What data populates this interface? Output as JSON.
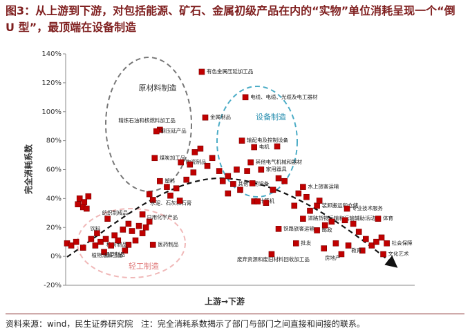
{
  "chart_data": {
    "type": "scatter",
    "title": "图3：从上游到下游，对包括能源、矿石、金属初级产品在内的“实物”单位消耗呈现一个“倒 U 型”，最顶端在设备制造",
    "y_label": "完全消耗系数",
    "x_label": "上游→下游",
    "annotations": [
      "原材料制造",
      "设备制造",
      "轻工制造"
    ],
    "source": "资料来源：wind，民生证券研究院   注：完全消耗系数揭示了部门与部门之间直接和间接的联系。",
    "color": "#c00000",
    "xlim": [
      0,
      100
    ],
    "ylim": [
      -20,
      140
    ],
    "yticks": [
      {
        "value": -20,
        "label": "-20%"
      },
      {
        "value": 0,
        "label": "0%"
      },
      {
        "value": 20,
        "label": "20%"
      },
      {
        "value": 40,
        "label": "40%"
      },
      {
        "value": 60,
        "label": "60%"
      },
      {
        "value": 80,
        "label": "80%"
      },
      {
        "value": 100,
        "label": "100%"
      },
      {
        "value": 120,
        "label": "120%"
      },
      {
        "value": 140,
        "label": "140%"
      }
    ],
    "x": [
      39,
      51.5,
      27,
      26,
      40,
      50.5,
      54,
      25.5,
      33,
      53,
      56,
      27,
      48,
      25,
      54,
      68,
      72,
      80.6,
      68,
      24,
      12,
      9,
      61,
      72,
      89.5,
      66,
      18,
      25,
      17,
      92,
      11,
      59,
      85,
      79,
      91,
      4,
      6.5,
      5,
      6,
      3.5,
      5.3,
      0.4,
      1.6,
      3,
      5,
      7.3,
      8.5,
      10,
      14,
      15,
      16.4,
      19,
      21,
      22,
      23,
      20,
      13,
      11.5,
      18,
      22,
      24,
      29,
      30,
      31.7,
      32.7,
      34.6,
      36.6,
      37,
      38.6,
      35.6,
      40.6,
      42,
      44,
      45,
      46.5,
      49,
      52,
      50,
      46.5,
      53.5,
      55,
      57.4,
      59.4,
      61,
      62.7,
      60.6,
      65.5,
      66.7,
      69,
      70,
      72.7,
      74.3,
      76.2,
      80,
      82.4,
      84,
      86,
      87.7,
      89,
      90.5,
      81,
      77.4,
      74
    ],
    "values": [
      127.6,
      110,
      87.5,
      86.5,
      96,
      80,
      75.5,
      68,
      65,
      65,
      60,
      52,
      50,
      39,
      38,
      48,
      35,
      33,
      26,
      24,
      26,
      16,
      19,
      18,
      26,
      9,
      8,
      8,
      4,
      9,
      3,
      1.5,
      4,
      1.5,
      1.5,
      40,
      41.5,
      34,
      33,
      36,
      37.5,
      9,
      7.5,
      10,
      6,
      12,
      7.5,
      10,
      14.5,
      11,
      18.5,
      17.5,
      21,
      16,
      20,
      11,
      7.5,
      12,
      22.5,
      29,
      43,
      48,
      42,
      47,
      38.5,
      53,
      58,
      72,
      74.5,
      63.5,
      62.5,
      68,
      59,
      52,
      55.5,
      60,
      59,
      46,
      43.5,
      50.5,
      38,
      37,
      46,
      54,
      52,
      76,
      35,
      43.5,
      41,
      31.5,
      38.5,
      21.5,
      24,
      25,
      22.5,
      17,
      12,
      7.5,
      10,
      13,
      7.5,
      9,
      5.5
    ],
    "point_labels": [
      "有色金属压延加工品",
      "电线、电缆、光缆及电工器材",
      "精炼石油和核燃料加工品",
      "钢压延产品",
      "金属制品",
      "输配电及控制设备",
      "电机",
      "煤炭加工品",
      "陶瓷制品",
      "其他电气机械和器材",
      "家用器具",
      "塑料",
      "其他专用设备",
      "水泥、石灰和石膏",
      "计算机",
      "水上旅客运输",
      "装卸搬运和仓储",
      "专业技术服务",
      "道路货物运输和运输辅助活动",
      "日用化学产品",
      "纺织制成品",
      "饮料",
      "铁路旅客运输",
      "邮政",
      "体育",
      "批发",
      "棉纺制品",
      "医药制品",
      "烟草制品",
      "社会保障",
      "植物油加工品",
      "废弃资源和废旧材料回收加工品",
      "教育",
      "房地产",
      "文化艺术",
      null,
      null,
      null,
      null,
      null,
      null,
      null,
      null,
      null,
      null,
      null,
      null,
      null,
      null,
      null,
      null,
      null,
      null,
      null,
      null,
      null,
      null,
      null,
      null,
      null,
      null,
      null,
      null,
      null,
      null,
      null,
      null,
      null,
      null,
      null,
      null,
      null,
      null,
      null,
      null,
      null,
      null,
      null,
      null,
      null,
      null,
      null,
      null,
      null,
      null,
      null,
      null,
      null,
      null,
      null,
      null,
      null,
      null,
      null,
      null,
      null,
      null,
      null,
      null,
      null,
      null,
      null,
      null
    ]
  }
}
